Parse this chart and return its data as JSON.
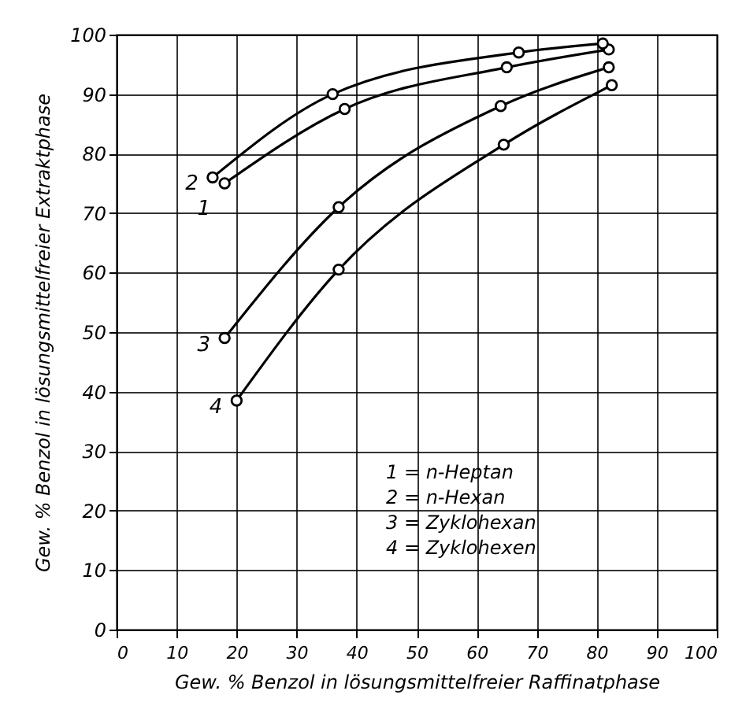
{
  "chart_data": {
    "type": "line",
    "xlabel": "Gew. % Benzol in lösungsmittelfreier Raffinatphase",
    "ylabel": "Gew. % Benzol in lösungsmittelfreier Extraktphase",
    "series": [
      {
        "name": "1",
        "color": "#000000",
        "x": [
          18,
          38,
          65,
          82
        ],
        "values": [
          75,
          87.5,
          94.5,
          97.5
        ]
      },
      {
        "name": "2",
        "color": "#000000",
        "x": [
          16,
          36,
          67,
          81
        ],
        "values": [
          76,
          90,
          97,
          98.5
        ]
      },
      {
        "name": "3",
        "color": "#000000",
        "x": [
          18,
          37,
          64,
          82
        ],
        "values": [
          49,
          71,
          88,
          94.5
        ]
      },
      {
        "name": "4",
        "color": "#000000",
        "x": [
          20,
          37,
          64.5,
          82.5
        ],
        "values": [
          38.5,
          60.5,
          81.5,
          91.5
        ]
      }
    ],
    "xlim": [
      0,
      100
    ],
    "xticks": [
      0,
      10,
      20,
      30,
      40,
      50,
      60,
      70,
      80,
      90,
      100
    ],
    "ylim": [
      0,
      100
    ],
    "yticks": [
      0,
      10,
      20,
      30,
      40,
      50,
      60,
      70,
      80,
      90,
      100
    ],
    "grid": true,
    "marker": "circle",
    "line_style": "solid",
    "legend": false,
    "annotations": [
      "1 = n-Heptan",
      "2 = n-Hexan",
      "3 = Zyklohexan",
      "4 = Zyklohexen"
    ]
  }
}
